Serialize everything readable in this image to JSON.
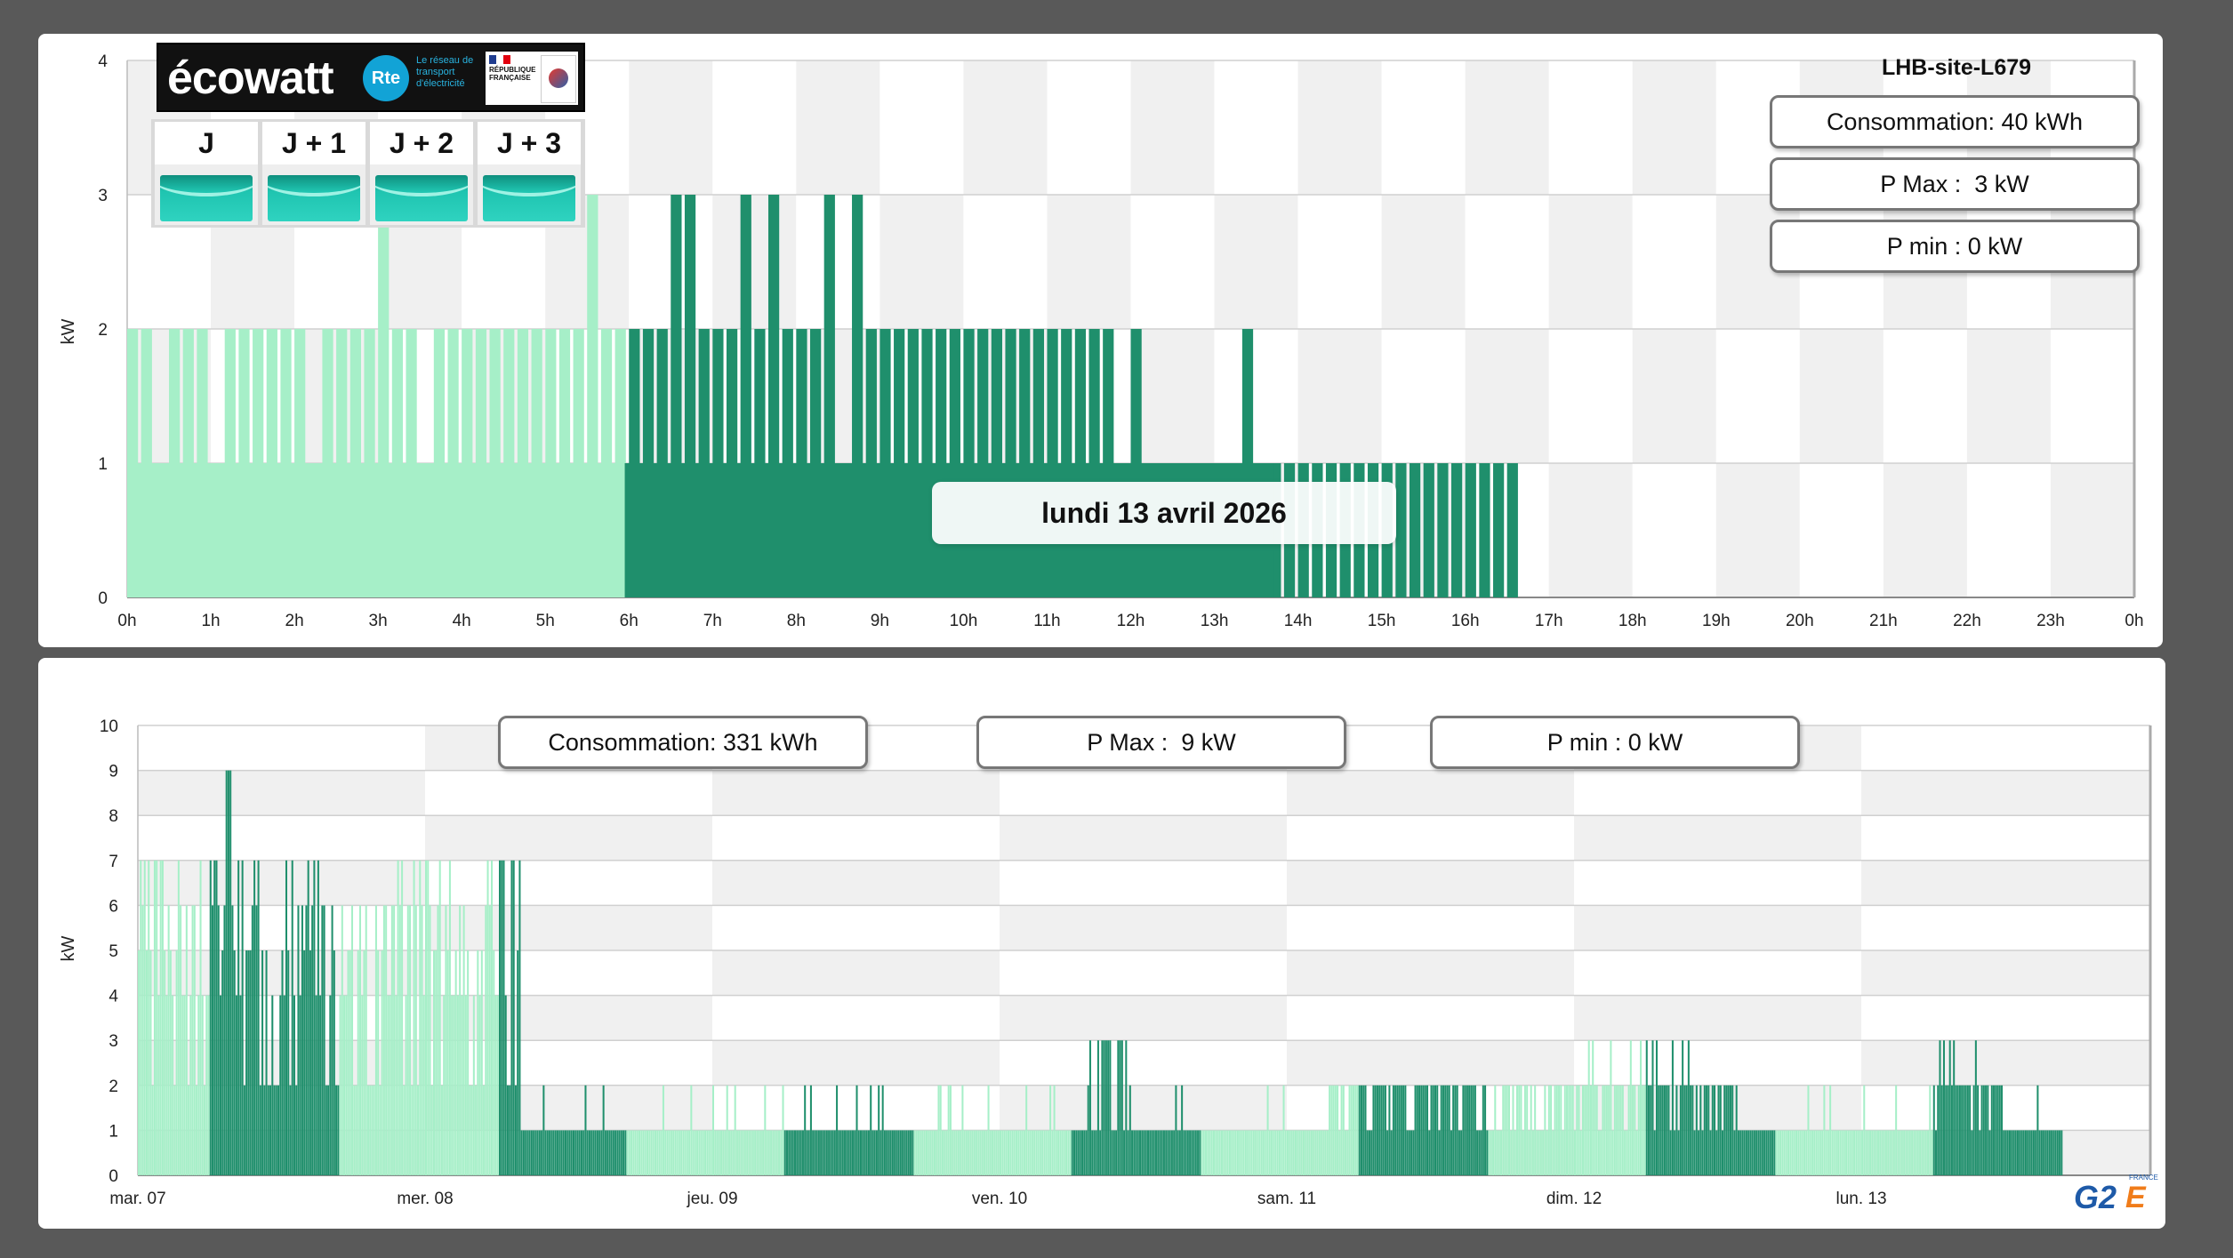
{
  "top_chart": {
    "site_title": "LHB-site-L679",
    "consumption_label": "Consommation: 40 kWh",
    "pmax_label": "P Max :  3 kW",
    "pmin_label": "P min : 0 kW",
    "date_label": "lundi 13 avril 2026",
    "ylabel": "kW",
    "ylim": [
      0,
      4
    ],
    "yticks": [
      "0",
      "1",
      "2",
      "3",
      "4"
    ],
    "xticks": [
      "0h",
      "1h",
      "2h",
      "3h",
      "4h",
      "5h",
      "6h",
      "7h",
      "8h",
      "9h",
      "10h",
      "11h",
      "12h",
      "13h",
      "14h",
      "15h",
      "16h",
      "17h",
      "18h",
      "19h",
      "20h",
      "21h",
      "22h",
      "23h",
      "0h"
    ]
  },
  "ecowatt": {
    "brand": "écowatt",
    "rte_logo": "Rte",
    "rte_caption": "Le réseau de transport d'électricité",
    "gov_caption": "RÉPUBLIQUE FRANÇAISE",
    "days": [
      {
        "label": "J",
        "color": "#1fc4b0"
      },
      {
        "label": "J + 1",
        "color": "#1fc4b0"
      },
      {
        "label": "J + 2",
        "color": "#1fc4b0"
      },
      {
        "label": "J + 3",
        "color": "#1fc4b0"
      }
    ]
  },
  "bottom_chart": {
    "consumption_label": "Consommation: 331 kWh",
    "pmax_label": "P Max :  9 kW",
    "pmin_label": "P min : 0 kW",
    "ylabel": "kW",
    "ylim": [
      0,
      10
    ],
    "yticks": [
      "0",
      "1",
      "2",
      "3",
      "4",
      "5",
      "6",
      "7",
      "8",
      "9",
      "10"
    ],
    "xticks": [
      "mar. 07",
      "mer. 08",
      "jeu. 09",
      "ven. 10",
      "sam. 11",
      "dim. 12",
      "lun. 13"
    ]
  },
  "colors": {
    "light_green": "#a6efc8",
    "dark_green": "#1f8f6c",
    "grid_band": "#f0f0f0",
    "background": "#595959"
  },
  "chart_data": [
    {
      "type": "bar",
      "title": "",
      "ylabel": "kW",
      "ylim": [
        0,
        4
      ],
      "x_unit": "hour",
      "series": [
        {
          "values_by_segment": [
            {
              "x_start": 0.0,
              "x_end": 5.85,
              "value": 2,
              "tariff": "off-peak"
            },
            {
              "x_start": 3.0,
              "x_end": 3.1,
              "value": 3,
              "tariff": "off-peak"
            },
            {
              "x_start": 5.5,
              "x_end": 5.6,
              "value": 3,
              "tariff": "off-peak"
            },
            {
              "x_start": 5.95,
              "x_end": 12.0,
              "value": 2,
              "tariff": "peak"
            },
            {
              "x_start": 6.2,
              "x_end": 9.55,
              "value": 3,
              "tariff": "peak"
            },
            {
              "x_start": 12.0,
              "x_end": 16.6,
              "value": 1,
              "tariff": "peak"
            },
            {
              "x_start": 13.3,
              "x_end": 13.4,
              "value": 2,
              "tariff": "peak"
            }
          ]
        }
      ]
    },
    {
      "type": "bar",
      "title": "",
      "ylabel": "kW",
      "ylim": [
        0,
        10
      ],
      "x_unit": "day",
      "categories": [
        "mar. 07",
        "mer. 08",
        "jeu. 09",
        "ven. 10",
        "sam. 11",
        "dim. 12",
        "lun. 13"
      ],
      "series": [
        {
          "values_by_segment": [
            {
              "x_start": 0.0,
              "x_end": 0.25,
              "value": 7,
              "tariff": "off-peak"
            },
            {
              "x_start": 0.25,
              "x_end": 0.7,
              "value": 8,
              "tariff": "peak"
            },
            {
              "x_start": 0.3,
              "x_end": 0.32,
              "value": 9,
              "tariff": "peak"
            },
            {
              "x_start": 0.7,
              "x_end": 1.25,
              "value": 7,
              "tariff": "off-peak"
            },
            {
              "x_start": 1.25,
              "x_end": 1.33,
              "value": 7,
              "tariff": "peak"
            },
            {
              "x_start": 1.33,
              "x_end": 1.7,
              "value": 1,
              "tariff": "peak"
            },
            {
              "x_start": 1.7,
              "x_end": 2.25,
              "value": 1,
              "tariff": "off-peak"
            },
            {
              "x_start": 2.25,
              "x_end": 2.7,
              "value": 1,
              "tariff": "peak"
            },
            {
              "x_start": 2.7,
              "x_end": 3.25,
              "value": 1,
              "tariff": "off-peak"
            },
            {
              "x_start": 3.25,
              "x_end": 3.7,
              "value": 1,
              "tariff": "peak"
            },
            {
              "x_start": 3.3,
              "x_end": 3.45,
              "value": 3,
              "tariff": "peak"
            },
            {
              "x_start": 3.7,
              "x_end": 6.25,
              "value": 1,
              "tariff": "off-peak"
            },
            {
              "x_start": 5.0,
              "x_end": 5.4,
              "value": 3,
              "tariff": "off-peak"
            },
            {
              "x_start": 6.25,
              "x_end": 6.7,
              "value": 1,
              "tariff": "peak"
            },
            {
              "x_start": 6.25,
              "x_end": 6.4,
              "value": 3,
              "tariff": "peak"
            }
          ]
        }
      ]
    }
  ]
}
